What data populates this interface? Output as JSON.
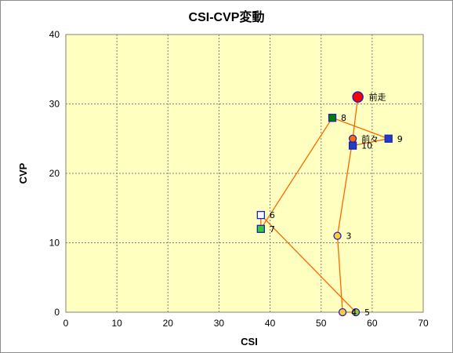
{
  "chart_data": {
    "type": "scatter",
    "title": "CSI-CVP変動",
    "xlabel": "CSI",
    "ylabel": "CVP",
    "xlim": [
      0,
      70
    ],
    "ylim": [
      0,
      40
    ],
    "xticks": [
      0,
      10,
      20,
      30,
      40,
      50,
      60,
      70
    ],
    "yticks": [
      0,
      10,
      20,
      30,
      40
    ],
    "grid": true,
    "plot_background": "#ffffc0",
    "line_color": "#ff6600",
    "path_order": [
      "前走",
      "前々",
      "3",
      "4",
      "5",
      "6",
      "7",
      "8",
      "9",
      "10"
    ],
    "points": [
      {
        "label": "前走",
        "x": 57.2,
        "y": 31,
        "marker": "circle-large",
        "fill": "#ff0000",
        "stroke": "#1f1fbf"
      },
      {
        "label": "前々",
        "x": 56.2,
        "y": 25,
        "marker": "circle",
        "fill": "#ff6a00",
        "stroke": "#1f1fbf"
      },
      {
        "label": "3",
        "x": 53.2,
        "y": 11,
        "marker": "circle",
        "fill": "#ffcc33",
        "stroke": "#1f1fbf"
      },
      {
        "label": "4",
        "x": 54.2,
        "y": 0,
        "marker": "circle",
        "fill": "#ffcc33",
        "stroke": "#1f1fbf"
      },
      {
        "label": "5",
        "x": 56.8,
        "y": 0,
        "marker": "circle",
        "fill": "#99cc33",
        "stroke": "#1f1fbf"
      },
      {
        "label": "6",
        "x": 38.2,
        "y": 14,
        "marker": "square",
        "fill": "#ffffff",
        "stroke": "#1f1fbf"
      },
      {
        "label": "7",
        "x": 38.2,
        "y": 12,
        "marker": "square",
        "fill": "#33cc33",
        "stroke": "#1f1fbf"
      },
      {
        "label": "8",
        "x": 52.2,
        "y": 28,
        "marker": "square",
        "fill": "#008000",
        "stroke": "#1f1fbf"
      },
      {
        "label": "9",
        "x": 63.2,
        "y": 25,
        "marker": "square",
        "fill": "#1f3fbf",
        "stroke": "#1f1fbf"
      },
      {
        "label": "10",
        "x": 56.2,
        "y": 24,
        "marker": "square",
        "fill": "#1f3fbf",
        "stroke": "#1f1fbf"
      }
    ]
  }
}
